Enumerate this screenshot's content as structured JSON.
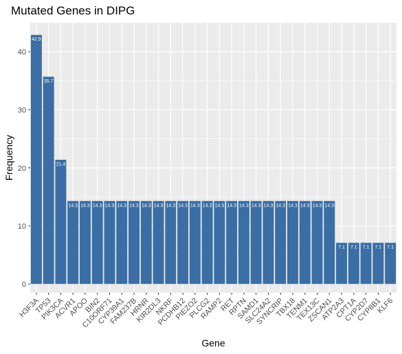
{
  "chart_data": {
    "type": "bar",
    "title": "Mutated Genes in DIPG",
    "xlabel": "Gene",
    "ylabel": "Frequency",
    "ylim": [
      -1.5,
      45
    ],
    "yticks": [
      0,
      10,
      20,
      30,
      40
    ],
    "grid": true,
    "bar_color": "#3a6ea5",
    "panel_color": "#ebebeb",
    "categories": [
      "H3F3A",
      "TP53",
      "PIK3CA",
      "ACVR1",
      "APOO",
      "BIN2",
      "C10ORF71",
      "CYP39A1",
      "FAM237B",
      "HRNR",
      "KIR2DL3",
      "NKRF",
      "PCDHB12",
      "PIEZO2",
      "PLCG2",
      "RAMP2",
      "RET",
      "RPTN",
      "SAMD1",
      "SLC24A2",
      "SYNCRIP",
      "TBX18",
      "TENM1",
      "TEX13C",
      "ZSCAN1",
      "ATP2A3",
      "CPT1A",
      "CYP2D7",
      "CYP8B1",
      "KLF6"
    ],
    "values": [
      42.9,
      35.7,
      21.4,
      14.3,
      14.3,
      14.3,
      14.3,
      14.3,
      14.3,
      14.3,
      14.3,
      14.3,
      14.3,
      14.3,
      14.3,
      14.3,
      14.3,
      14.3,
      14.3,
      14.3,
      14.3,
      14.3,
      14.3,
      14.3,
      14.3,
      7.1,
      7.1,
      7.1,
      7.1,
      7.1
    ],
    "labels": [
      "42.9",
      "35.7",
      "21.4",
      "14.3",
      "14.3",
      "14.3",
      "14.3",
      "14.3",
      "14.3",
      "14.3",
      "14.3",
      "14.3",
      "14.3",
      "14.3",
      "14.3",
      "14.3",
      "14.3",
      "14.3",
      "14.3",
      "14.3",
      "14.3",
      "14.3",
      "14.3",
      "14.3",
      "14.3",
      "7.1",
      "7.1",
      "7.1",
      "7.1",
      "7.1"
    ]
  }
}
